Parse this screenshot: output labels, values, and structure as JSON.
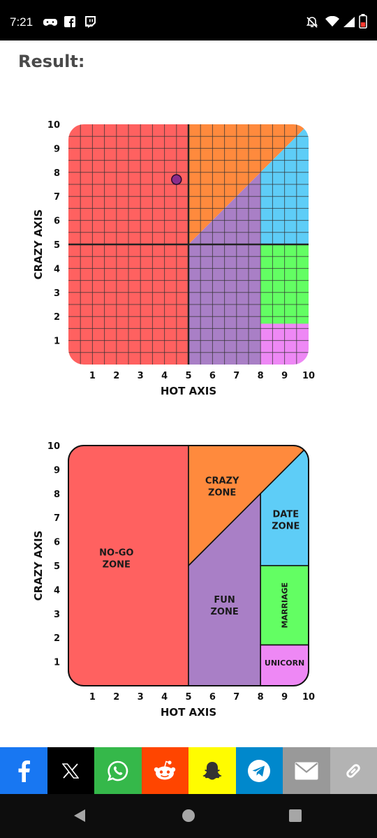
{
  "status": {
    "time": "7:21"
  },
  "page": {
    "result_label": "Result:"
  },
  "chart_data": [
    {
      "type": "scatter",
      "title": "",
      "xlabel": "HOT AXIS",
      "ylabel": "CRAZY AXIS",
      "xlim": [
        0,
        10
      ],
      "ylim": [
        0,
        10
      ],
      "grid": true,
      "minor_grid_step": 0.5,
      "x_ticks": [
        1,
        2,
        3,
        4,
        5,
        6,
        7,
        8,
        9,
        10
      ],
      "y_ticks": [
        1,
        2,
        3,
        4,
        5,
        6,
        7,
        8,
        9,
        10
      ],
      "points": [
        {
          "x": 4.5,
          "y": 7.7
        }
      ],
      "point_color": "#8b2d8b",
      "regions": [
        {
          "color": "#ff6160",
          "polygon": [
            [
              0,
              0
            ],
            [
              5,
              0
            ],
            [
              5,
              10
            ],
            [
              0,
              10
            ]
          ]
        },
        {
          "color": "#ff8a3d",
          "polygon": [
            [
              5,
              5
            ],
            [
              10,
              10
            ],
            [
              5,
              10
            ]
          ]
        },
        {
          "color": "#a97fc6",
          "polygon": [
            [
              5,
              0
            ],
            [
              8,
              0
            ],
            [
              8,
              8
            ],
            [
              5,
              5
            ]
          ]
        },
        {
          "color": "#5ecdf7",
          "polygon": [
            [
              8,
              5
            ],
            [
              10,
              5
            ],
            [
              10,
              10
            ],
            [
              8,
              8
            ]
          ]
        },
        {
          "color": "#63fe63",
          "polygon": [
            [
              8,
              1.7
            ],
            [
              10,
              1.7
            ],
            [
              10,
              5
            ],
            [
              8,
              5
            ]
          ]
        },
        {
          "color": "#ee88f5",
          "polygon": [
            [
              8,
              0
            ],
            [
              10,
              0
            ],
            [
              10,
              1.7
            ],
            [
              8,
              1.7
            ]
          ]
        }
      ]
    },
    {
      "type": "diagram",
      "title": "",
      "xlabel": "HOT AXIS",
      "ylabel": "CRAZY AXIS",
      "xlim": [
        0,
        10
      ],
      "ylim": [
        0,
        10
      ],
      "grid": false,
      "x_ticks": [
        1,
        2,
        3,
        4,
        5,
        6,
        7,
        8,
        9,
        10
      ],
      "y_ticks": [
        1,
        2,
        3,
        4,
        5,
        6,
        7,
        8,
        9,
        10
      ],
      "zones": [
        {
          "name": "NO-GO ZONE",
          "lines": [
            "NO-GO",
            "ZONE"
          ],
          "color": "#ff6160",
          "polygon": [
            [
              0,
              0
            ],
            [
              5,
              0
            ],
            [
              5,
              10
            ],
            [
              0,
              10
            ]
          ],
          "label_at": [
            2,
            5.3
          ]
        },
        {
          "name": "CRAZY ZONE",
          "lines": [
            "CRAZY",
            "ZONE"
          ],
          "color": "#ff8a3d",
          "polygon": [
            [
              5,
              5
            ],
            [
              10,
              10
            ],
            [
              5,
              10
            ]
          ],
          "label_at": [
            6.4,
            8.3
          ]
        },
        {
          "name": "FUN ZONE",
          "lines": [
            "FUN",
            "ZONE"
          ],
          "color": "#a97fc6",
          "polygon": [
            [
              5,
              0
            ],
            [
              8,
              0
            ],
            [
              8,
              8
            ],
            [
              5,
              5
            ]
          ],
          "label_at": [
            6.5,
            3.35
          ]
        },
        {
          "name": "DATE ZONE",
          "lines": [
            "DATE",
            "ZONE"
          ],
          "color": "#5ecdf7",
          "polygon": [
            [
              8,
              5
            ],
            [
              10,
              5
            ],
            [
              10,
              10
            ],
            [
              8,
              8
            ]
          ],
          "label_at": [
            9.05,
            6.9
          ]
        },
        {
          "name": "MARRIAGE",
          "lines": [
            "MARRIAGE"
          ],
          "color": "#63fe63",
          "polygon": [
            [
              8,
              1.7
            ],
            [
              10,
              1.7
            ],
            [
              10,
              5
            ],
            [
              8,
              5
            ]
          ],
          "label_at": [
            9.0,
            3.35
          ],
          "rotated": true
        },
        {
          "name": "UNICORN",
          "lines": [
            "UNICORN"
          ],
          "color": "#ee88f5",
          "polygon": [
            [
              8,
              0
            ],
            [
              10,
              0
            ],
            [
              10,
              1.7
            ],
            [
              8,
              1.7
            ]
          ],
          "label_at": [
            9.0,
            0.95
          ]
        }
      ]
    }
  ],
  "share": [
    {
      "name": "facebook",
      "color": "#1877f2"
    },
    {
      "name": "x",
      "color": "#000000"
    },
    {
      "name": "whatsapp",
      "color": "#35b84a"
    },
    {
      "name": "reddit",
      "color": "#ff4500"
    },
    {
      "name": "snapchat",
      "color": "#fffc00"
    },
    {
      "name": "telegram",
      "color": "#0088cc"
    },
    {
      "name": "email",
      "color": "#999999"
    },
    {
      "name": "copy-link",
      "color": "#b3b3b3"
    }
  ]
}
